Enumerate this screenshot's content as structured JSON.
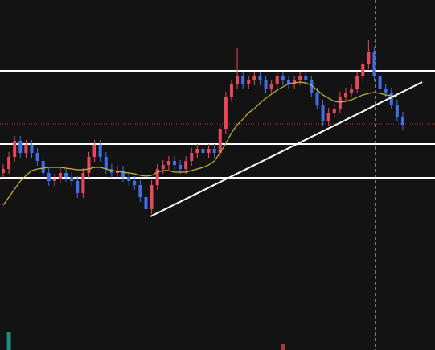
{
  "chart_data": {
    "type": "candlestick",
    "xlim": [
      -0.56,
      75.64
    ],
    "ylim": [
      0,
      435
    ],
    "up_color": "#e8485c",
    "down_color": "#3f6fe8",
    "open": [
      220,
      225,
      240,
      260,
      245,
      255,
      245,
      235,
      220,
      210,
      213,
      220,
      215,
      210,
      195,
      220,
      240,
      255,
      240,
      225,
      220,
      223,
      215,
      210,
      205,
      190,
      175,
      205,
      225,
      230,
      235,
      230,
      225,
      235,
      245,
      250,
      245,
      250,
      245,
      275,
      315,
      330,
      340,
      330,
      335,
      340,
      335,
      325,
      330,
      340,
      335,
      330,
      335,
      340,
      335,
      320,
      305,
      285,
      295,
      300,
      315,
      320,
      325,
      340,
      355,
      370,
      340,
      325,
      320,
      305,
      290
    ],
    "high": [
      231,
      246,
      266,
      266,
      261,
      261,
      251,
      241,
      226,
      219,
      226,
      226,
      221,
      216,
      226,
      246,
      261,
      261,
      246,
      231,
      229,
      229,
      221,
      216,
      211,
      196,
      211,
      231,
      236,
      241,
      241,
      236,
      241,
      251,
      256,
      256,
      256,
      256,
      281,
      321,
      336,
      375,
      346,
      341,
      346,
      346,
      341,
      336,
      346,
      346,
      341,
      341,
      346,
      346,
      341,
      326,
      311,
      301,
      306,
      321,
      326,
      331,
      346,
      361,
      385,
      376,
      346,
      331,
      326,
      311,
      296
    ],
    "low": [
      214,
      219,
      234,
      239,
      239,
      239,
      229,
      214,
      204,
      204,
      207,
      209,
      204,
      189,
      189,
      214,
      234,
      234,
      219,
      214,
      214,
      209,
      204,
      199,
      184,
      155,
      169,
      199,
      219,
      224,
      224,
      219,
      219,
      229,
      239,
      239,
      239,
      239,
      239,
      269,
      309,
      324,
      324,
      324,
      329,
      329,
      319,
      319,
      324,
      329,
      324,
      324,
      329,
      329,
      314,
      299,
      279,
      279,
      289,
      294,
      309,
      314,
      319,
      334,
      349,
      334,
      319,
      314,
      299,
      284,
      274
    ],
    "close": [
      225,
      240,
      260,
      245,
      255,
      245,
      235,
      220,
      210,
      213,
      220,
      215,
      210,
      195,
      220,
      240,
      255,
      240,
      225,
      220,
      223,
      215,
      210,
      205,
      190,
      175,
      205,
      225,
      230,
      235,
      230,
      225,
      235,
      245,
      250,
      245,
      250,
      245,
      275,
      315,
      330,
      340,
      330,
      335,
      340,
      335,
      325,
      330,
      340,
      335,
      330,
      335,
      340,
      335,
      320,
      305,
      285,
      295,
      300,
      315,
      320,
      325,
      340,
      355,
      370,
      340,
      325,
      320,
      305,
      290,
      280
    ],
    "moving_average": {
      "color": "#c9b53a",
      "values": [
        180,
        190,
        200,
        210,
        217,
        223,
        225,
        226,
        227,
        227,
        227,
        226,
        225,
        224,
        224,
        225,
        227,
        227,
        225,
        223,
        222,
        221,
        220,
        219,
        217,
        216,
        217,
        221,
        223,
        223,
        221,
        221,
        221,
        223,
        225,
        227,
        230,
        235,
        245,
        257,
        270,
        280,
        287,
        295,
        300,
        307,
        313,
        318,
        323,
        327,
        331,
        332,
        333,
        332,
        329,
        323,
        317,
        313,
        309,
        308,
        309,
        311,
        314,
        317,
        319,
        320,
        319,
        317,
        316,
        315,
        null
      ]
    },
    "hlines": {
      "color": "#ffffff",
      "values": [
        347,
        256,
        214
      ]
    },
    "price_line": {
      "color": "#c0303c",
      "value": 281
    },
    "trendline": {
      "color": "#ffffff",
      "x": [
        25.8,
        73.4
      ],
      "values": [
        166,
        333
      ]
    },
    "volume": {
      "x": [
        1,
        49
      ],
      "values": [
        22,
        8
      ],
      "colors": [
        "#1e8c7e",
        "#a83a3a"
      ]
    }
  }
}
